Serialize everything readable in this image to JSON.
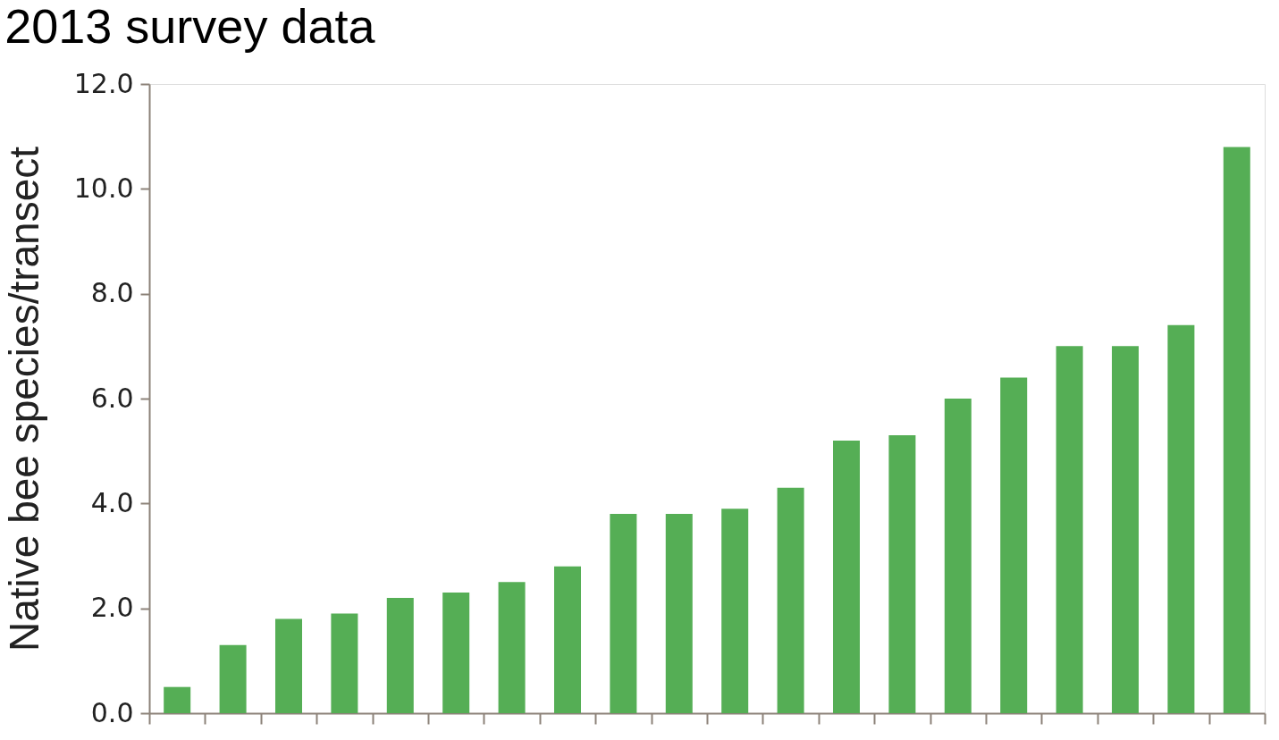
{
  "chart_data": {
    "type": "bar",
    "title": "2013 survey data",
    "ylabel": "Native bee species/transect",
    "categories": [
      null,
      null,
      null,
      null,
      null,
      null,
      null,
      null,
      null,
      null,
      null,
      null,
      null,
      null,
      null,
      null,
      null,
      null,
      null,
      null
    ],
    "values": [
      0.5,
      1.3,
      1.8,
      1.9,
      2.2,
      2.3,
      2.5,
      2.8,
      3.8,
      3.8,
      3.9,
      4.3,
      5.2,
      5.3,
      6.0,
      6.4,
      7.0,
      7.0,
      7.4,
      10.8
    ],
    "color": "#55ae55",
    "ylim": [
      0,
      12
    ],
    "yticks": [
      {
        "value": 0,
        "label": "0.0"
      },
      {
        "value": 2,
        "label": "2.0"
      },
      {
        "value": 4,
        "label": "4.0"
      },
      {
        "value": 6,
        "label": "6.0"
      },
      {
        "value": 8,
        "label": "8.0"
      },
      {
        "value": 10,
        "label": "10.0"
      },
      {
        "value": 12,
        "label": "12.0"
      }
    ],
    "tick_labels": "y",
    "grid": false
  }
}
